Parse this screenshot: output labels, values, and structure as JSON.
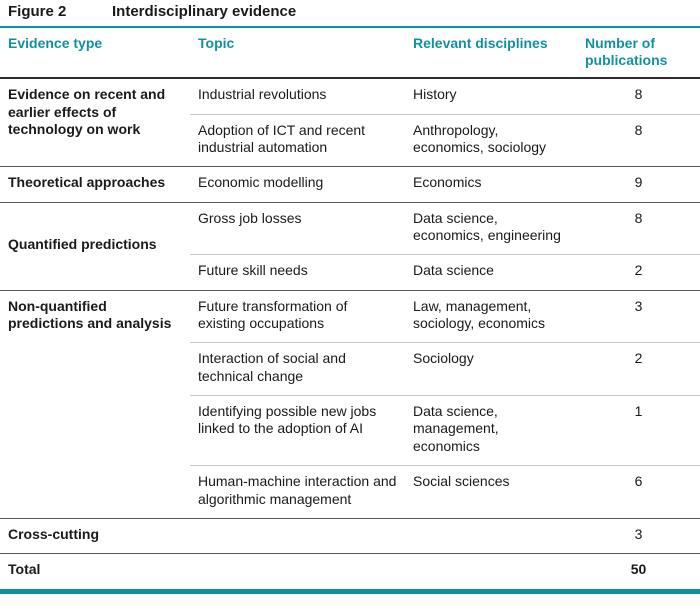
{
  "title": {
    "label": "Figure 2",
    "caption": "Interdisciplinary evidence"
  },
  "columns": [
    "Evidence type",
    "Topic",
    "Relevant disciplines",
    "Number of publications"
  ],
  "colors": {
    "accent_teal": "#1191A0",
    "dark_rule": "#595959",
    "light_rule": "#c8c8c8"
  },
  "groups": [
    {
      "evidence_type": "Evidence on recent and earlier effects of technology on work",
      "rows": [
        {
          "topic": "Industrial revolutions",
          "disciplines": "History",
          "count": "8"
        },
        {
          "topic": "Adoption of ICT and recent industrial automation",
          "disciplines": "Anthropology, economics, sociology",
          "count": "8"
        }
      ]
    },
    {
      "evidence_type": "Theoretical approaches",
      "rows": [
        {
          "topic": "Economic modelling",
          "disciplines": "Economics",
          "count": "9"
        }
      ]
    },
    {
      "evidence_type": "Quantified predictions",
      "rows": [
        {
          "topic": "Gross job losses",
          "disciplines": "Data science, economics, engineering",
          "count": "8"
        },
        {
          "topic": "Future skill needs",
          "disciplines": "Data science",
          "count": "2"
        }
      ]
    },
    {
      "evidence_type": "Non-quantified predictions and analysis",
      "rows": [
        {
          "topic": "Future transformation of existing occupations",
          "disciplines": "Law, management, sociology, economics",
          "count": "3"
        },
        {
          "topic": "Interaction of social and technical change",
          "disciplines": "Sociology",
          "count": "2"
        },
        {
          "topic": "Identifying possible new jobs linked to the adoption of AI",
          "disciplines": "Data science, management, economics",
          "count": "1"
        },
        {
          "topic": "Human-machine interaction and algorithmic management",
          "disciplines": "Social sciences",
          "count": "6"
        }
      ]
    }
  ],
  "summary_rows": [
    {
      "label": "Cross-cutting",
      "count": "3"
    },
    {
      "label": "Total",
      "count": "50"
    }
  ]
}
